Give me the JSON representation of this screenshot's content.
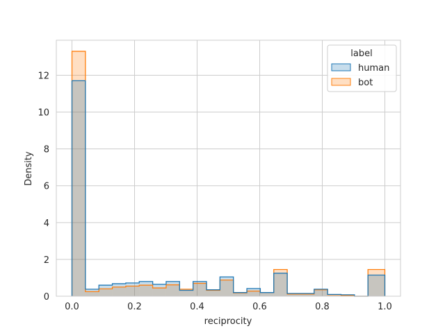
{
  "chart_data": {
    "type": "histogram",
    "xlabel": "reciprocity",
    "ylabel": "Density",
    "xlim": [
      -0.05,
      1.05
    ],
    "ylim": [
      0,
      13.9
    ],
    "x_ticks": [
      0.0,
      0.2,
      0.4,
      0.6,
      0.8,
      1.0
    ],
    "x_tick_labels": [
      "0.0",
      "0.2",
      "0.4",
      "0.6",
      "0.8",
      "1.0"
    ],
    "y_ticks": [
      0,
      2,
      4,
      6,
      8,
      10,
      12
    ],
    "y_tick_labels": [
      "0",
      "2",
      "4",
      "6",
      "8",
      "10",
      "12"
    ],
    "grid": true,
    "bin_edges": [
      0.0,
      0.043,
      0.086,
      0.129,
      0.172,
      0.215,
      0.258,
      0.301,
      0.344,
      0.387,
      0.43,
      0.473,
      0.516,
      0.559,
      0.602,
      0.645,
      0.688,
      0.731,
      0.774,
      0.817,
      0.86,
      0.903,
      0.946,
      1.0
    ],
    "legend": {
      "title": "label",
      "position": "top-right",
      "entries": [
        "human",
        "bot"
      ]
    },
    "series": [
      {
        "name": "human",
        "color": "#1f77b4",
        "fill": "rgba(31,119,180,0.25)",
        "values": [
          11.7,
          0.38,
          0.6,
          0.68,
          0.72,
          0.8,
          0.65,
          0.8,
          0.32,
          0.8,
          0.35,
          1.05,
          0.2,
          0.42,
          0.2,
          1.25,
          0.15,
          0.15,
          0.38,
          0.1,
          0.08,
          0.0,
          1.15
        ]
      },
      {
        "name": "bot",
        "color": "#ff7f0e",
        "fill": "rgba(255,127,14,0.25)",
        "values": [
          13.3,
          0.25,
          0.4,
          0.5,
          0.55,
          0.6,
          0.45,
          0.62,
          0.38,
          0.7,
          0.32,
          0.88,
          0.18,
          0.28,
          0.2,
          1.45,
          0.12,
          0.12,
          0.35,
          0.08,
          0.05,
          0.0,
          1.45
        ]
      }
    ]
  }
}
